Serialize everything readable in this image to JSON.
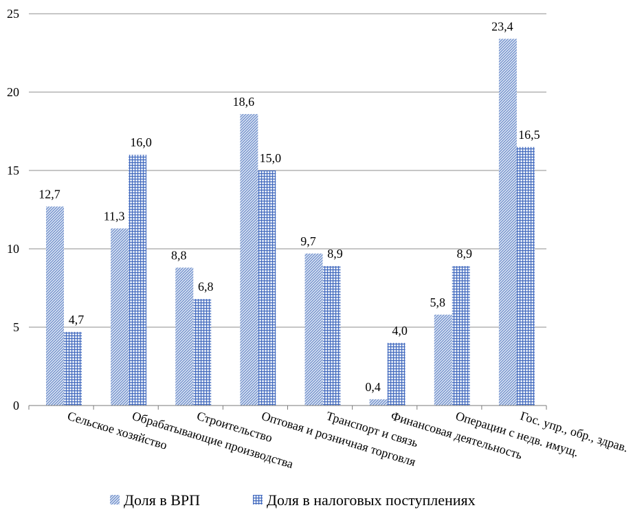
{
  "chart_data": {
    "type": "bar",
    "categories": [
      "Сельское хозяйство",
      "Обрабатывающие производства",
      "Строительство",
      "Оптовая и розничная торговля",
      "Транспорт и связь",
      "Финансовая деятельность",
      "Операции с недв. имущ.",
      "Гос. упр., обр., здрав."
    ],
    "series": [
      {
        "name": "Доля в ВРП",
        "values": [
          12.7,
          11.3,
          8.8,
          18.6,
          9.7,
          0.4,
          5.8,
          23.4
        ],
        "labels": [
          "12,7",
          "11,3",
          "8,8",
          "18,6",
          "9,7",
          "0,4",
          "5,8",
          "23,4"
        ],
        "pattern": "diagonal-hatch",
        "color": "#6f8fc9"
      },
      {
        "name": "Доля в налоговых поступлениях",
        "values": [
          4.7,
          16.0,
          6.8,
          15.0,
          8.9,
          4.0,
          8.9,
          16.5
        ],
        "labels": [
          "4,7",
          "16,0",
          "6,8",
          "15,0",
          "8,9",
          "4,0",
          "8,9",
          "16,5"
        ],
        "pattern": "grid-crosshatch",
        "color": "#4e73c2"
      }
    ],
    "ylim": [
      0,
      25
    ],
    "yticks": [
      "0",
      "5",
      "10",
      "15",
      "20",
      "25"
    ],
    "grid": true,
    "legend_position": "bottom",
    "title": "",
    "xlabel": "",
    "ylabel": ""
  }
}
